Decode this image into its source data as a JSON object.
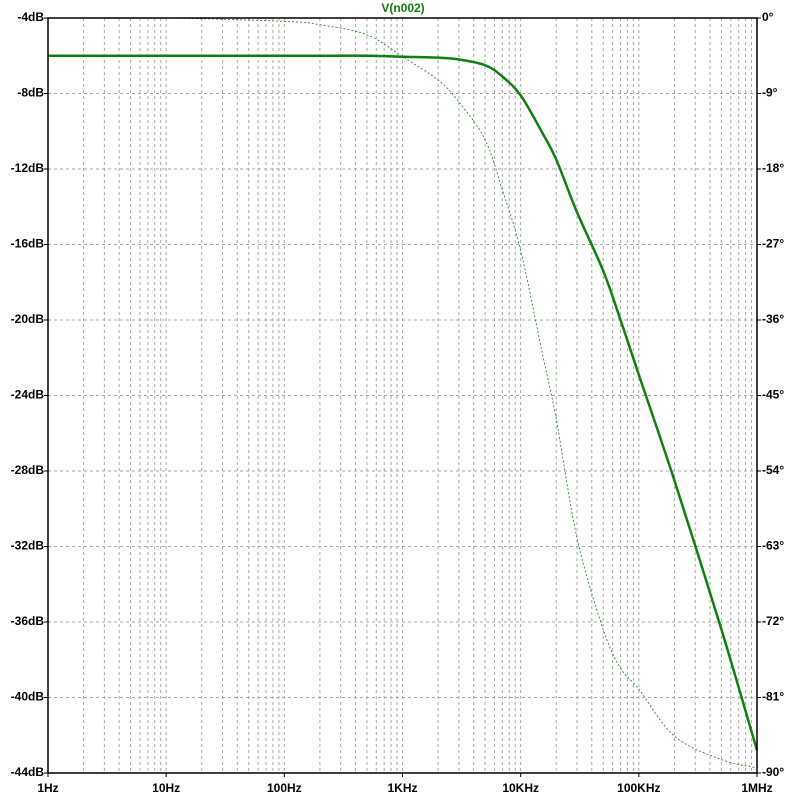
{
  "chart_data": {
    "type": "line",
    "title": "V(n002)",
    "log_x": true,
    "grid": true,
    "color": "#008000",
    "x": [
      1,
      10,
      100,
      200,
      500,
      1000,
      2000,
      3000,
      5000,
      7000,
      10000,
      15000,
      20000,
      30000,
      50000,
      70000,
      100000,
      200000,
      500000,
      1000000
    ],
    "series": [
      {
        "color": "#108010",
        "style": "solid",
        "values": [
          -6,
          -6,
          -6,
          -6,
          -6,
          -6.05,
          -6.1,
          -6.2,
          -6.5,
          -7.1,
          -8.1,
          -10.0,
          -11.5,
          -14.3,
          -17.4,
          -20.0,
          -22.9,
          -28.5,
          -36.4,
          -42.8
        ]
      },
      {
        "color": "#108010",
        "style": "dashed",
        "axis": "y2",
        "values": [
          0,
          0,
          -0.4,
          -0.8,
          -2,
          -4.6,
          -7.4,
          -10.0,
          -14.5,
          -20.5,
          -27.7,
          -39.5,
          -47.8,
          -62.0,
          -72.9,
          -77.5,
          -80,
          -85.6,
          -88.4,
          -89.4
        ]
      }
    ],
    "xlim": [
      1,
      1000000
    ],
    "xticks": [
      {
        "value": 1,
        "label": "1Hz"
      },
      {
        "value": 10,
        "label": "10Hz"
      },
      {
        "value": 100,
        "label": "100Hz"
      },
      {
        "value": 1000,
        "label": "1KHz"
      },
      {
        "value": 10000,
        "label": "10KHz"
      },
      {
        "value": 100000,
        "label": "100KHz"
      },
      {
        "value": 1000000,
        "label": "1MHz"
      }
    ],
    "ylim": [
      -44,
      -4
    ],
    "yticks": [
      {
        "value": -44,
        "label": "-44dB"
      },
      {
        "value": -40,
        "label": "-40dB"
      },
      {
        "value": -36,
        "label": "-36dB"
      },
      {
        "value": -32,
        "label": "-32dB"
      },
      {
        "value": -28,
        "label": "-28dB"
      },
      {
        "value": -24,
        "label": "-24dB"
      },
      {
        "value": -20,
        "label": "-20dB"
      },
      {
        "value": -16,
        "label": "-16dB"
      },
      {
        "value": -12,
        "label": "-12dB"
      },
      {
        "value": -8,
        "label": "-8dB"
      },
      {
        "value": -4,
        "label": "-4dB"
      }
    ],
    "y2lim": [
      -90,
      0
    ],
    "y2ticks": [
      {
        "value": -90,
        "label": "-90°"
      },
      {
        "value": -81,
        "label": "-81°"
      },
      {
        "value": -72,
        "label": "-72°"
      },
      {
        "value": -63,
        "label": "-63°"
      },
      {
        "value": -54,
        "label": "-54°"
      },
      {
        "value": -45,
        "label": "-45°"
      },
      {
        "value": -36,
        "label": "-36°"
      },
      {
        "value": -27,
        "label": "-27°"
      },
      {
        "value": -18,
        "label": "-18°"
      },
      {
        "value": -9,
        "label": "-9°"
      },
      {
        "value": 0,
        "label": "0°"
      }
    ]
  }
}
